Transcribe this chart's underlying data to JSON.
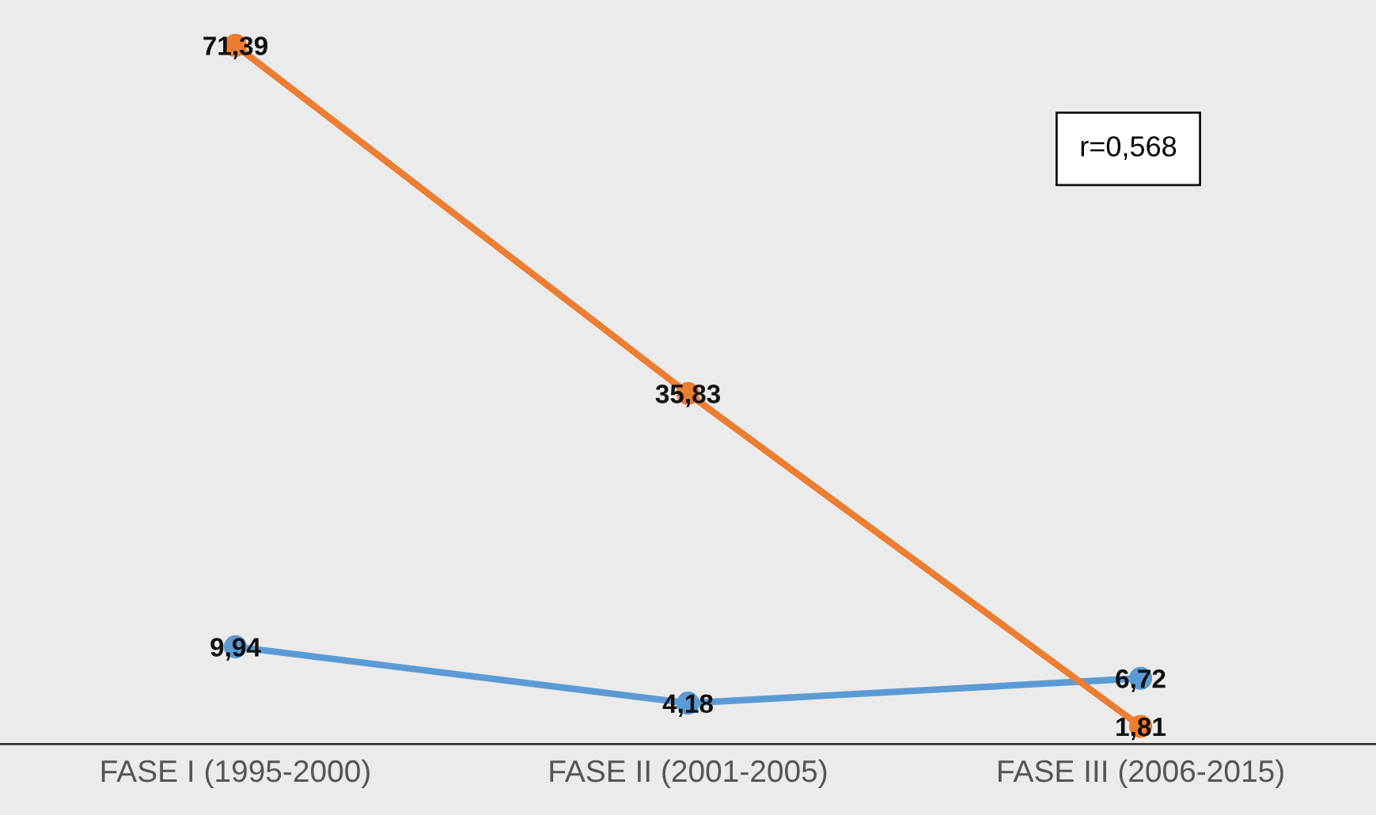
{
  "chart_data": {
    "type": "line",
    "categories": [
      "FASE I (1995-2000)",
      "FASE II (2001-2005)",
      "FASE III (2006-2015)"
    ],
    "series": [
      {
        "color": "#5b9bd5",
        "values": [
          9.94,
          4.18,
          6.72
        ],
        "value_labels": [
          "9,94",
          "4,18",
          "6,72"
        ]
      },
      {
        "color": "#ed7d31",
        "values": [
          71.39,
          35.83,
          1.81
        ],
        "value_labels": [
          "71,39",
          "35,83",
          "1,81"
        ]
      }
    ],
    "annotations": [
      "r=0,568"
    ],
    "marker": "circle",
    "line_style": "solid",
    "grid": false,
    "legend": false
  }
}
